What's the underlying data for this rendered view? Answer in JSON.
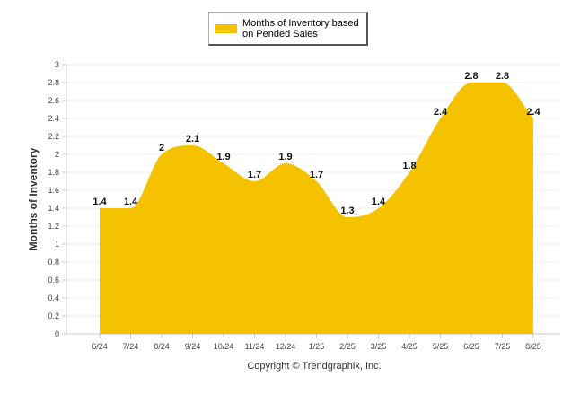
{
  "chart_data": {
    "type": "area",
    "categories": [
      "6/24",
      "7/24",
      "8/24",
      "9/24",
      "10/24",
      "11/24",
      "12/24",
      "1/25",
      "2/25",
      "3/25",
      "4/25",
      "5/25",
      "6/25",
      "7/25",
      "8/25"
    ],
    "series": [
      {
        "name": "Months of Inventory based on Pended Sales",
        "values": [
          1.4,
          1.4,
          2,
          2.1,
          1.9,
          1.7,
          1.9,
          1.7,
          1.3,
          1.4,
          1.8,
          2.4,
          2.8,
          2.8,
          2.4
        ],
        "labels": [
          "1.4",
          "1.4",
          "2",
          "2.1",
          "1.9",
          "1.7",
          "1.9",
          "1.7",
          "1.3",
          "1.4",
          "1.8",
          "2.4",
          "2.8",
          "2.8",
          "2.4"
        ],
        "color": "#F5C200"
      }
    ],
    "ylabel": "Months of Inventory",
    "ylim": [
      0,
      3
    ],
    "yticks": [
      "0",
      "0.2",
      "0.4",
      "0.6",
      "0.8",
      "1",
      "1.2",
      "1.4",
      "1.6",
      "1.8",
      "2",
      "2.2",
      "2.4",
      "2.6",
      "2.8",
      "3"
    ],
    "grid": true,
    "legend_position": "top-center"
  },
  "legend": {
    "label": "Months of Inventory based on Pended Sales"
  },
  "footer": {
    "copyright": "Copyright © Trendgraphix, Inc."
  }
}
